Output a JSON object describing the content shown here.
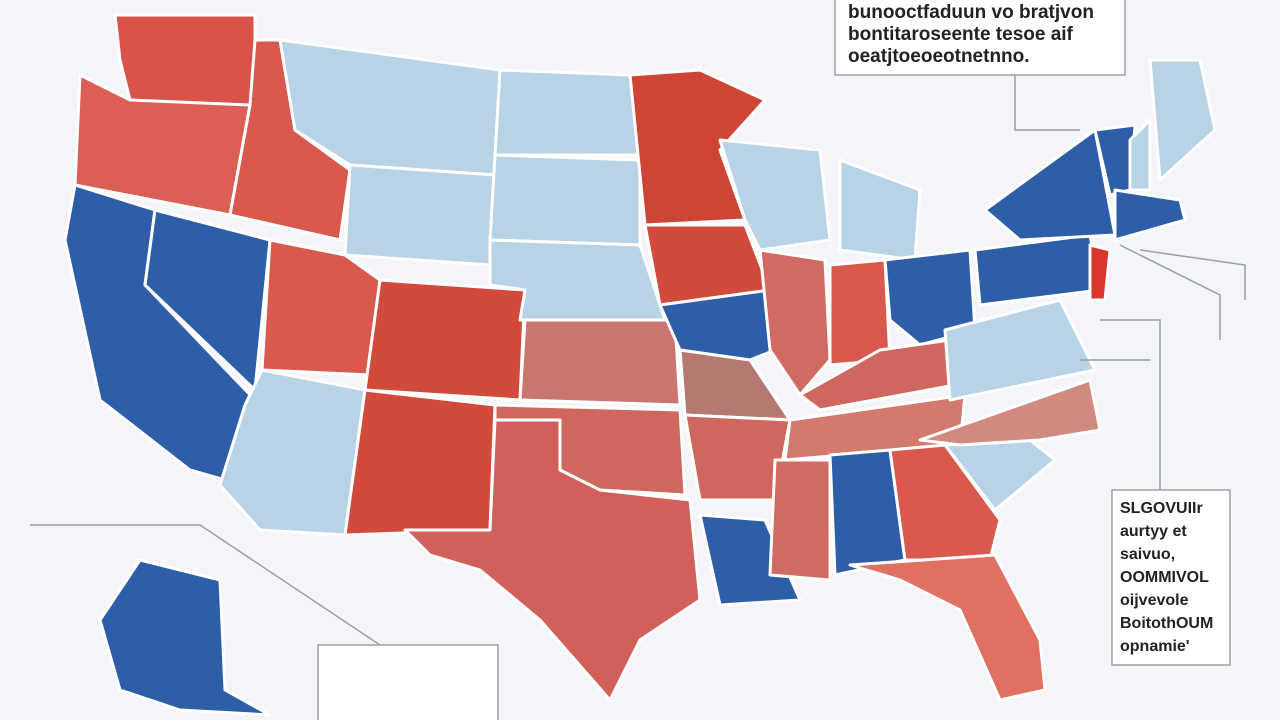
{
  "top_note": {
    "lines": [
      "bunooctfaduun vo bratjvon",
      "bontitaroseente tesoe aif",
      "oeatjtoeoeotnetnno."
    ]
  },
  "side_note": {
    "lines": [
      "SLGOVUIIr",
      "aurtyy et",
      "saivuo,",
      "OOMMIVOL",
      "oijvevole",
      "BoitothOUM",
      "opnamie'"
    ]
  }
}
